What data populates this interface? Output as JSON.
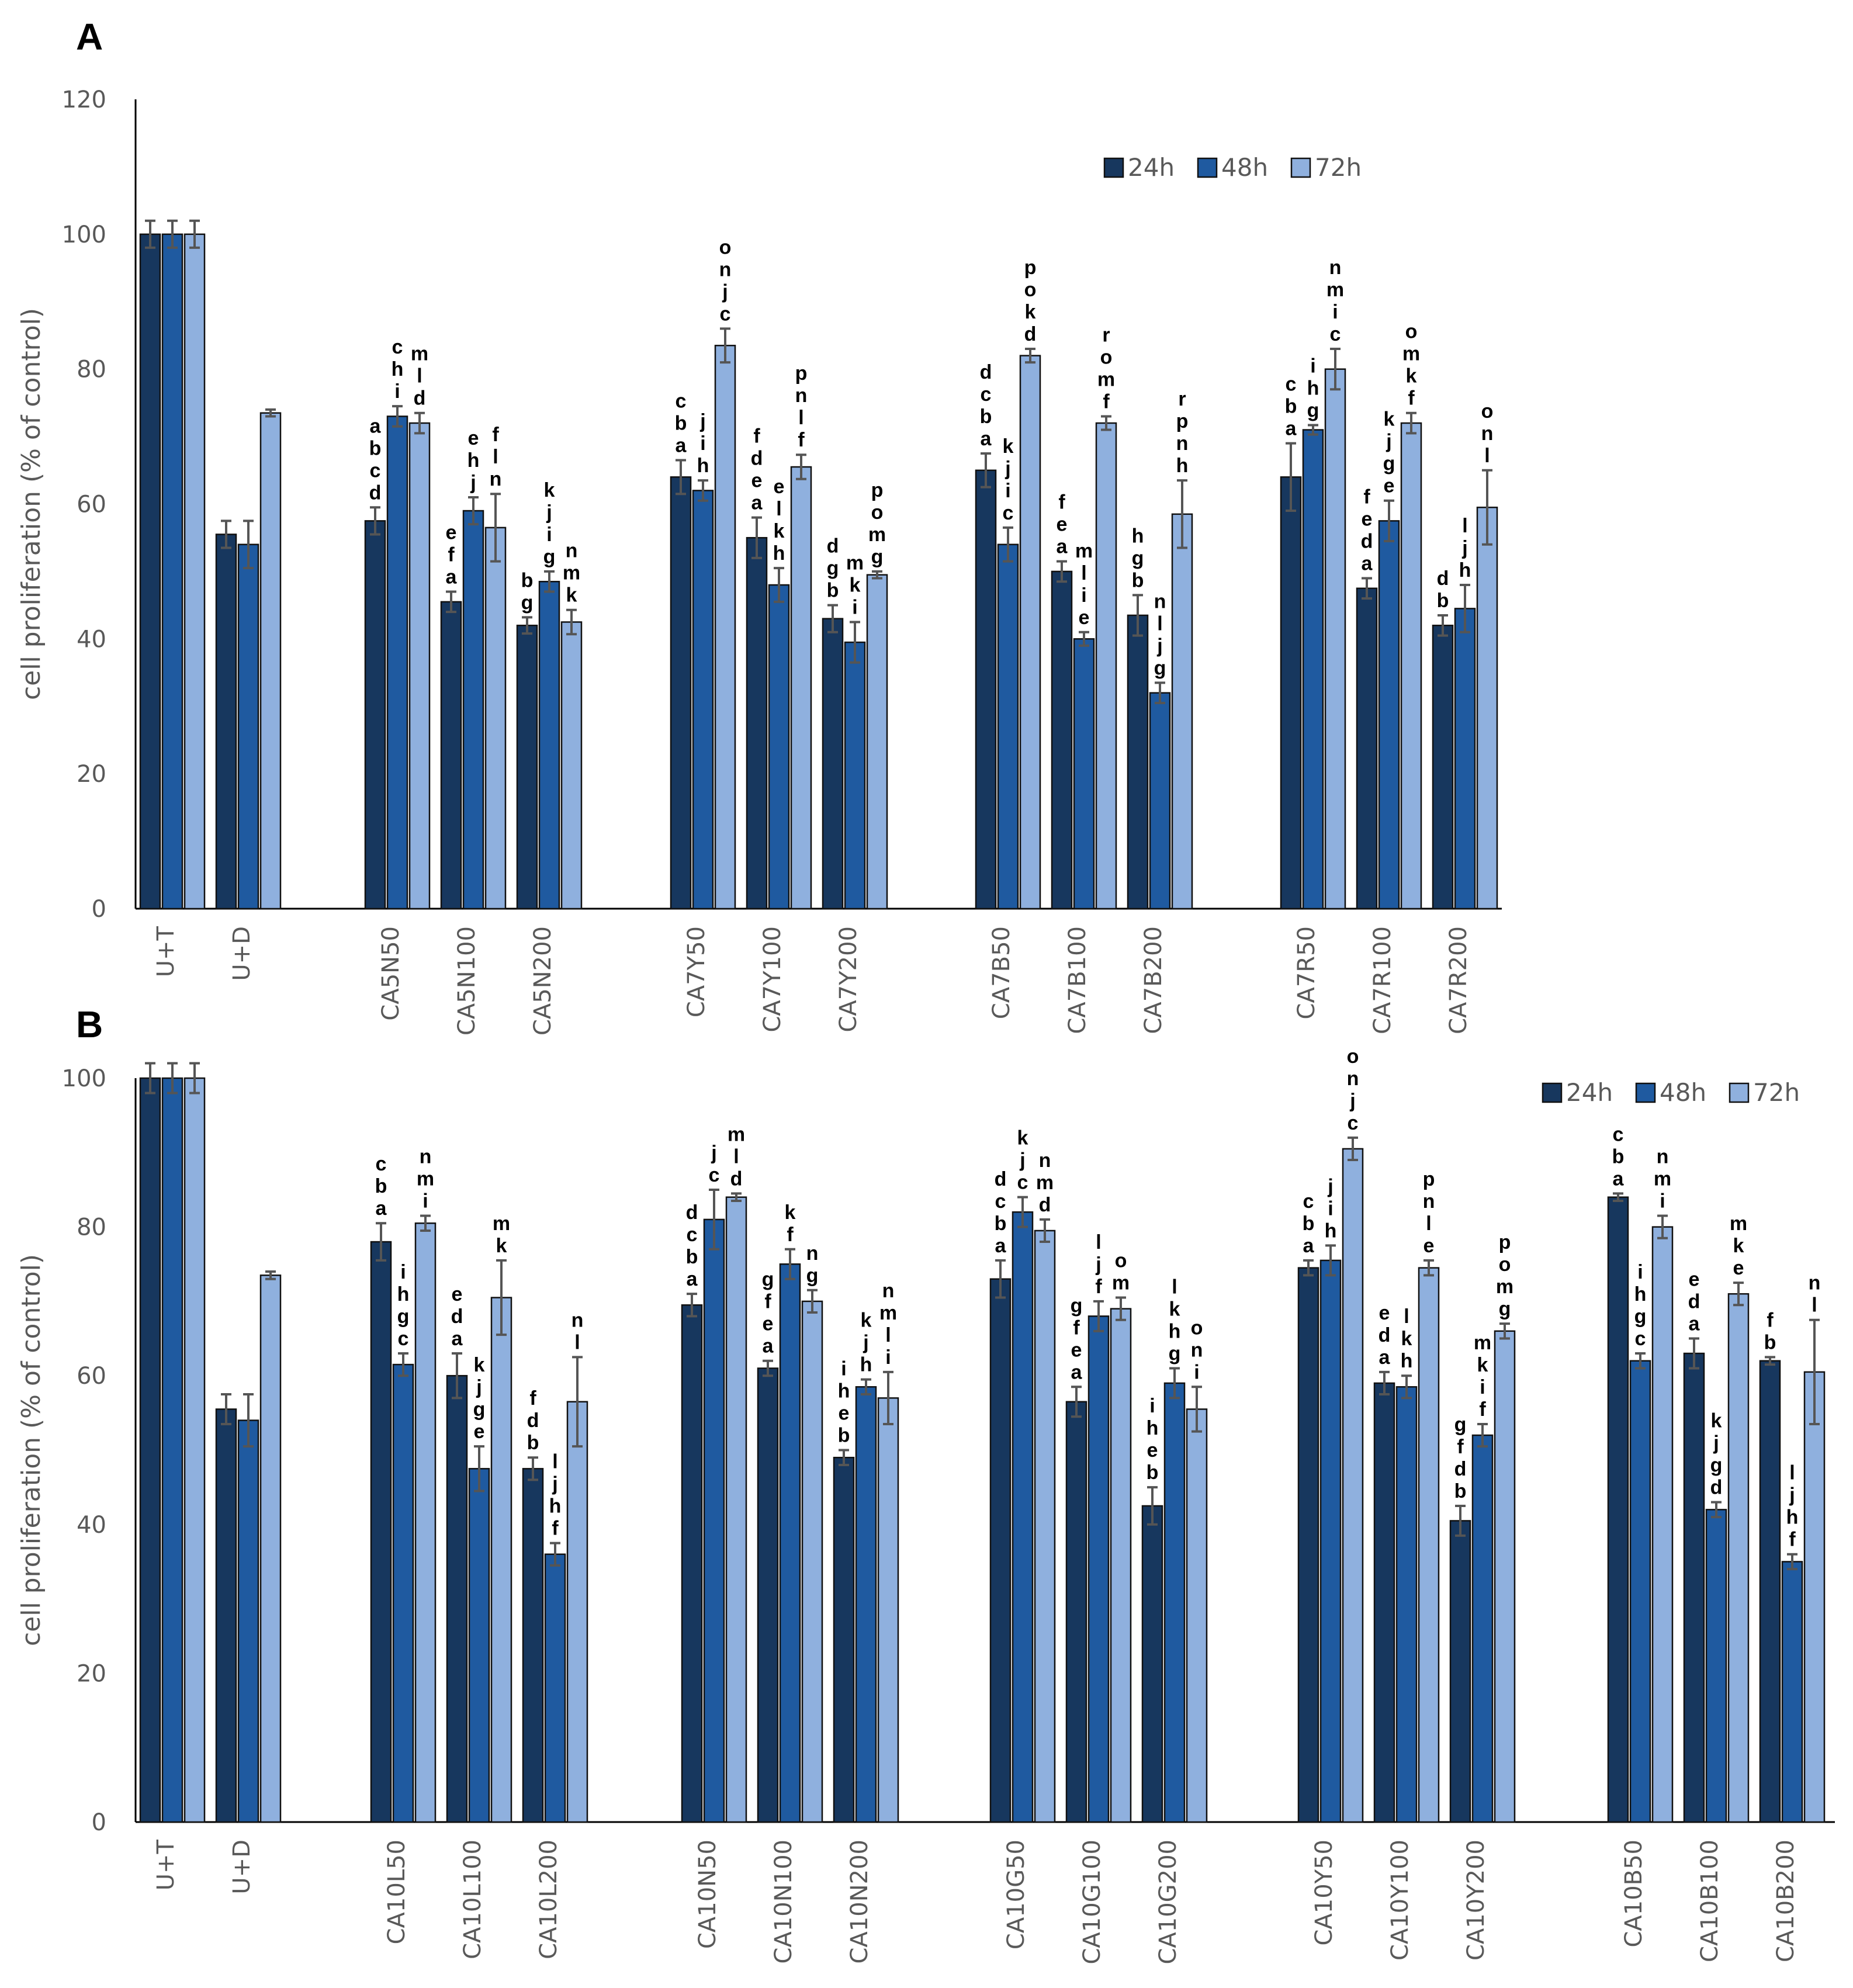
{
  "colors": {
    "h24": "#17375e",
    "h48": "#1f5aa0",
    "h72": "#8fb0de"
  },
  "chart_data": [
    {
      "panel": "A",
      "type": "bar",
      "ylabel": "cell proliferation (% of control)",
      "ylim": [
        0,
        120
      ],
      "yticks": [
        "0",
        "20",
        "40",
        "60",
        "80",
        "100",
        "120"
      ],
      "legend": [
        "24h",
        "48h",
        "72h"
      ],
      "legend_position": "top-right",
      "categories": [
        "U+T",
        "U+D",
        "CA5N50",
        "CA5N100",
        "CA5N200",
        "CA7Y50",
        "CA7Y100",
        "CA7Y200",
        "CA7B50",
        "CA7B100",
        "CA7B200",
        "CA7R50",
        "CA7R100",
        "CA7R200"
      ],
      "series": [
        {
          "name": "24h",
          "values": [
            100,
            55.5,
            57.5,
            45.5,
            42,
            64,
            55,
            43,
            65,
            50,
            43.5,
            64,
            47.5,
            42
          ],
          "errors": [
            2,
            2,
            2,
            1.5,
            1.2,
            2.5,
            3,
            2,
            2.5,
            1.5,
            3,
            5,
            1.5,
            1.5
          ]
        },
        {
          "name": "48h",
          "values": [
            100,
            54,
            73,
            59,
            48.5,
            62,
            48,
            39.5,
            54,
            40,
            32,
            71,
            57.5,
            44.5
          ],
          "errors": [
            2,
            3.5,
            1.5,
            2,
            1.5,
            1.5,
            2.5,
            3,
            2.5,
            1,
            1.5,
            0.7,
            3,
            3.5
          ]
        },
        {
          "name": "72h",
          "values": [
            100,
            73.5,
            72,
            56.5,
            42.5,
            83.5,
            65.5,
            49.5,
            82,
            72,
            58.5,
            80,
            72,
            59.5
          ],
          "errors": [
            2,
            0.5,
            1.5,
            5,
            1.8,
            2.5,
            1.8,
            0.5,
            1,
            1,
            5,
            3,
            1.5,
            5.5
          ]
        }
      ],
      "letters": [
        [
          "",
          "",
          ""
        ],
        [
          "",
          "",
          ""
        ],
        [
          "abcd",
          "chi",
          "mld"
        ],
        [
          "efa",
          "ehj",
          "fln"
        ],
        [
          "bg",
          "kjig",
          "nmk"
        ],
        [
          "cba",
          "jih",
          "onjc"
        ],
        [
          "fdea",
          "elkh",
          "pnlf"
        ],
        [
          "dgb",
          "mki",
          "pomg"
        ],
        [
          "dcba",
          "kjic",
          "pokd"
        ],
        [
          "fea",
          "mlie",
          "romf"
        ],
        [
          "hgb",
          "nljg",
          "rpnh"
        ],
        [
          "cba",
          "ihg",
          "nmic"
        ],
        [
          "feda",
          "kjge",
          "omkf"
        ],
        [
          "db",
          "ljh",
          "onl"
        ]
      ]
    },
    {
      "panel": "B",
      "type": "bar",
      "ylabel": "cell proliferation (% of control)",
      "ylim": [
        0,
        100
      ],
      "yticks": [
        "0",
        "20",
        "40",
        "60",
        "80",
        "100"
      ],
      "legend": [
        "24h",
        "48h",
        "72h"
      ],
      "legend_position": "top-right",
      "categories": [
        "U+T",
        "U+D",
        "CA10L50",
        "CA10L100",
        "CA10L200",
        "CA10N50",
        "CA10N100",
        "CA10N200",
        "CA10G50",
        "CA10G100",
        "CA10G200",
        "CA10Y50",
        "CA10Y100",
        "CA10Y200",
        "CA10B50",
        "CA10B100",
        "CA10B200"
      ],
      "series": [
        {
          "name": "24h",
          "values": [
            100,
            55.5,
            78,
            60,
            47.5,
            69.5,
            61,
            49,
            73,
            56.5,
            42.5,
            74.5,
            59,
            40.5,
            84,
            63,
            62
          ],
          "errors": [
            2,
            2,
            2.5,
            3,
            1.5,
            1.5,
            1,
            1,
            2.5,
            2,
            2.5,
            1,
            1.5,
            2,
            0.5,
            2,
            0.5
          ]
        },
        {
          "name": "48h",
          "values": [
            100,
            54,
            61.5,
            47.5,
            36,
            81,
            75,
            58.5,
            82,
            68,
            59,
            75.5,
            58.5,
            52,
            62,
            42,
            35
          ],
          "errors": [
            2,
            3.5,
            1.5,
            3,
            1.5,
            4,
            2,
            1,
            2,
            2,
            2,
            2,
            1.5,
            1.5,
            1,
            1,
            1
          ]
        },
        {
          "name": "72h",
          "values": [
            100,
            73.5,
            80.5,
            70.5,
            56.5,
            84,
            70,
            57,
            79.5,
            69,
            55.5,
            90.5,
            74.5,
            66,
            80,
            71,
            60.5
          ],
          "errors": [
            2,
            0.5,
            1,
            5,
            6,
            0.5,
            1.5,
            3.5,
            1.5,
            1.5,
            3,
            1.5,
            1,
            1,
            1.5,
            1.5,
            7
          ]
        }
      ],
      "letters": [
        [
          "",
          "",
          ""
        ],
        [
          "",
          "",
          ""
        ],
        [
          "cba",
          "ihgc",
          "nmi"
        ],
        [
          "eda",
          "kjge",
          "mk"
        ],
        [
          "fdb",
          "ljhf",
          "nl"
        ],
        [
          "dcba",
          "jc",
          "mld"
        ],
        [
          "gfea",
          "kf",
          "ng"
        ],
        [
          "iheb",
          "kjh",
          "nmli"
        ],
        [
          "dcba",
          "kjc",
          "nmd"
        ],
        [
          "gfea",
          "ljf",
          "om"
        ],
        [
          "iheb",
          "lkhg",
          "oni"
        ],
        [
          "cba",
          "jih",
          "onjc"
        ],
        [
          "eda",
          "lkh",
          "pnle"
        ],
        [
          "gfdb",
          "mkif",
          "pomg"
        ],
        [
          "cba",
          "ihgc",
          "nmi"
        ],
        [
          "eda",
          "kjgd",
          "mke"
        ],
        [
          "fb",
          "ljhf",
          "nl"
        ]
      ]
    }
  ]
}
